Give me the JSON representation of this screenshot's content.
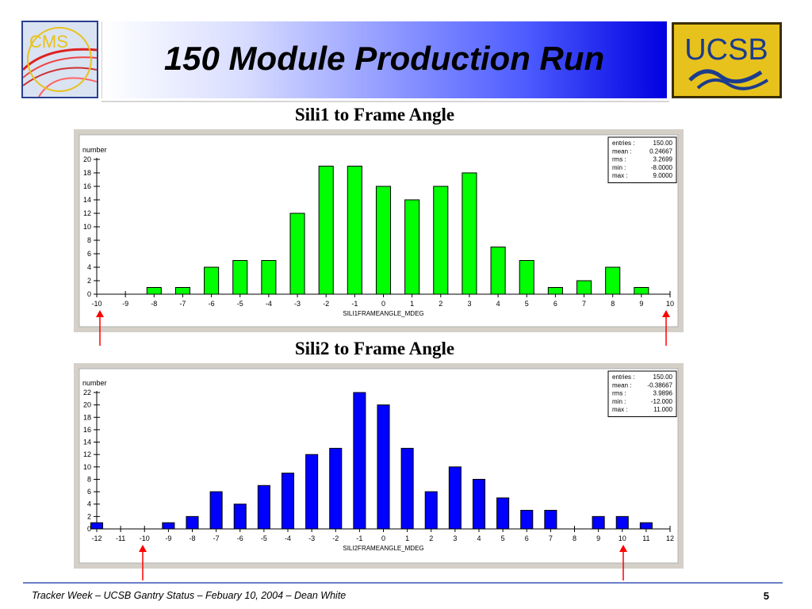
{
  "slide": {
    "title": "150 Module Production Run",
    "footer": "Tracker Week – UCSB Gantry Status – Febuary 10, 2004 –  Dean White",
    "page_number": "5"
  },
  "logos": {
    "cms": "CMS",
    "ucsb": "UCSB"
  },
  "colors": {
    "chart1_bars": "#00ff00",
    "chart2_bars": "#0000ff",
    "marker_arrows": "#ff0000",
    "chart_panel": "#d4d0c8"
  },
  "chart_data": [
    {
      "type": "bar",
      "title": "Sili1 to Frame Angle",
      "ylabel": "number",
      "xlabel": "SILI1FRAMEANGLE_MDEG",
      "xlim": [
        -10,
        10
      ],
      "ylim": [
        0,
        20
      ],
      "xticks": [
        -10,
        -9,
        -8,
        -7,
        -6,
        -5,
        -4,
        -3,
        -2,
        -1,
        0,
        1,
        2,
        3,
        4,
        5,
        6,
        7,
        8,
        9,
        10
      ],
      "yticks": [
        0,
        2,
        4,
        6,
        8,
        10,
        12,
        14,
        16,
        18,
        20
      ],
      "x": [
        -8,
        -7,
        -6,
        -5,
        -4,
        -3,
        -2,
        -1,
        0,
        1,
        2,
        3,
        4,
        5,
        6,
        7,
        8,
        9
      ],
      "values": [
        1,
        1,
        4,
        5,
        5,
        12,
        19,
        19,
        16,
        14,
        16,
        18,
        7,
        5,
        1,
        2,
        4,
        1
      ],
      "stats": [
        {
          "label": "entries :",
          "value": "150.00"
        },
        {
          "label": "mean :",
          "value": "0.24667"
        },
        {
          "label": "rms :",
          "value": "3.2699"
        },
        {
          "label": "min :",
          "value": "-8.0000"
        },
        {
          "label": "max :",
          "value": "9.0000"
        }
      ],
      "markers_at_x": [
        -10,
        10
      ]
    },
    {
      "type": "bar",
      "title": "Sili2 to Frame Angle",
      "ylabel": "number",
      "xlabel": "SILI2FRAMEANGLE_MDEG",
      "xlim": [
        -12,
        12
      ],
      "ylim": [
        0,
        22
      ],
      "xticks": [
        -12,
        -11,
        -10,
        -9,
        -8,
        -7,
        -6,
        -5,
        -4,
        -3,
        -2,
        -1,
        0,
        1,
        2,
        3,
        4,
        5,
        6,
        7,
        8,
        9,
        10,
        11,
        12
      ],
      "yticks": [
        0,
        2,
        4,
        6,
        8,
        10,
        12,
        14,
        16,
        18,
        20,
        22
      ],
      "x": [
        -12,
        -9,
        -8,
        -7,
        -6,
        -5,
        -4,
        -3,
        -2,
        -1,
        0,
        1,
        2,
        3,
        4,
        5,
        6,
        7,
        9,
        10,
        11
      ],
      "values": [
        1,
        1,
        2,
        6,
        4,
        7,
        9,
        12,
        13,
        22,
        20,
        13,
        6,
        10,
        8,
        5,
        3,
        3,
        2,
        2,
        1
      ],
      "stats": [
        {
          "label": "entries :",
          "value": "150.00"
        },
        {
          "label": "mean :",
          "value": "-0.38667"
        },
        {
          "label": "rms :",
          "value": "3.9896"
        },
        {
          "label": "min :",
          "value": "-12.000"
        },
        {
          "label": "max :",
          "value": "11.000"
        }
      ],
      "markers_at_x": [
        -10,
        10
      ]
    }
  ]
}
